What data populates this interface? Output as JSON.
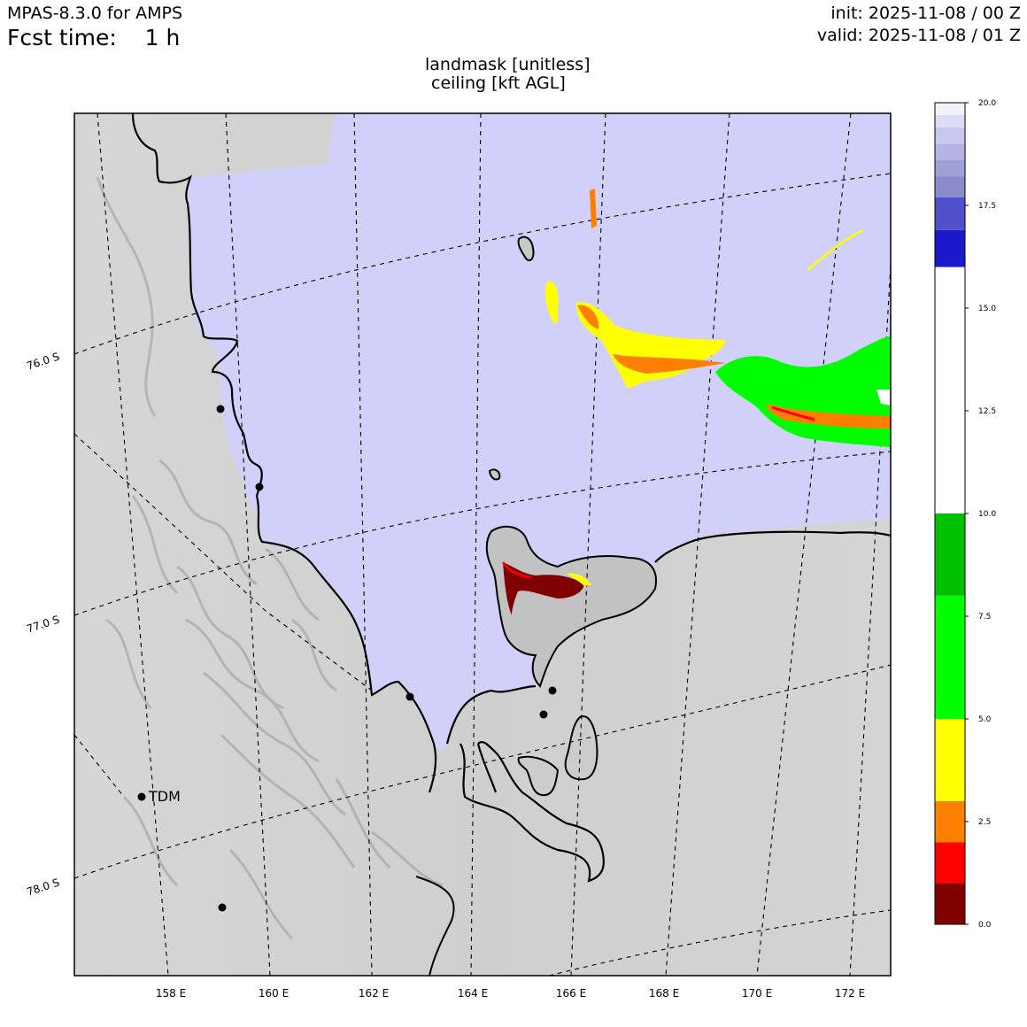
{
  "header": {
    "model": "MPAS-8.3.0 for AMPS",
    "fcst_time": "Fcst time:    1 h",
    "init": "init: 2025-11-08 / 00 Z",
    "valid": "valid: 2025-11-08 / 01 Z"
  },
  "title": {
    "line1": "landmask [unitless]",
    "line2": "ceiling [kft AGL]"
  },
  "map": {
    "lon_labels": [
      "158 E",
      "160 E",
      "162 E",
      "164 E",
      "166 E",
      "168 E",
      "170 E",
      "172 E"
    ],
    "lat_labels": [
      "76.0 S",
      "77.0 S",
      "78.0 S"
    ],
    "station_label": "TDM",
    "colors": {
      "ocean": "#d0d0fa",
      "land": "#d3d3d3",
      "coast": "#000000"
    }
  },
  "colorbar": {
    "tick_labels": [
      "20.0",
      "17.5",
      "15.0",
      "12.5",
      "10.0",
      "7.5",
      "5.0",
      "2.5",
      "0.0"
    ],
    "range": [
      0,
      20
    ],
    "bands": [
      {
        "from": 0,
        "to": 1,
        "color": "#800000"
      },
      {
        "from": 1,
        "to": 2,
        "color": "#ff0000"
      },
      {
        "from": 2,
        "to": 3,
        "color": "#ff8000"
      },
      {
        "from": 3,
        "to": 5,
        "color": "#ffff00"
      },
      {
        "from": 5,
        "to": 8,
        "color": "#00ff00"
      },
      {
        "from": 8,
        "to": 10,
        "color": "#00c000"
      },
      {
        "from": 10,
        "to": 16,
        "color": "#ffffff"
      },
      {
        "from": 16,
        "to": 16.9,
        "color": "#1a1acc"
      },
      {
        "from": 16.9,
        "to": 17.7,
        "color": "#5050cc"
      },
      {
        "from": 17.7,
        "to": 18.2,
        "color": "#8a8acc"
      },
      {
        "from": 18.2,
        "to": 18.6,
        "color": "#a0a0d8"
      },
      {
        "from": 18.6,
        "to": 19.0,
        "color": "#b4b4e4"
      },
      {
        "from": 19.0,
        "to": 19.4,
        "color": "#c8c8f0"
      },
      {
        "from": 19.4,
        "to": 19.7,
        "color": "#dcdcf6"
      },
      {
        "from": 19.7,
        "to": 20,
        "color": "#f2f2fc"
      }
    ]
  }
}
